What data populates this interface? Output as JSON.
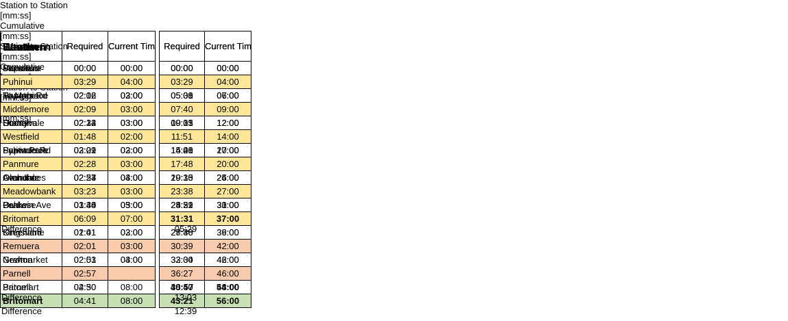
{
  "tables": [
    {
      "title": "Western",
      "groups": [
        {
          "name": "Station to Station",
          "unit": "[mm:ss]"
        },
        {
          "name": "Cumulative",
          "unit": "[mm:ss]"
        }
      ],
      "columns": [
        "Required",
        "Current Timetable",
        "Required",
        "Current Timetable"
      ],
      "rows": [
        [
          "Swanson",
          "00:00",
          "00:00",
          "00:00",
          "00:00"
        ],
        [
          "Ranui",
          "02:44",
          "03:00",
          "02:44",
          "03:00"
        ],
        [
          "Sturges Rd",
          "02:16",
          "03:00",
          "05:00",
          "06:00"
        ],
        [
          "Henderson",
          "02:01",
          "03:00",
          "07:01",
          "09:00"
        ],
        [
          "Sunnyvale",
          "02:14",
          "03:00",
          "09:15",
          "12:00"
        ],
        [
          "Glen Eden",
          "02:52",
          "03:00",
          "12:07",
          "15:00"
        ],
        [
          "Fruitvale Rd",
          "02:01",
          "02:00",
          "14:08",
          "17:00"
        ],
        [
          "New Lynn",
          "02:28",
          "04:00",
          "16:36",
          "21:00"
        ],
        [
          "Avondale",
          "02:54",
          "04:00",
          "19:30",
          "25:00"
        ],
        [
          "Mt Albert",
          "02:41",
          "03:00",
          "22:11",
          "28:00"
        ],
        [
          "Baldwin Ave",
          "01:48",
          "03:00",
          "23:59",
          "31:00"
        ],
        [
          "Morningside",
          "02:00",
          "03:00",
          "25:59",
          "34:00"
        ],
        [
          "Kingsland",
          "01:41",
          "02:00",
          "27:40",
          "36:00"
        ],
        [
          "Mt Eden",
          "02:21",
          "03:00",
          "30:01",
          "39:00"
        ],
        [
          "Grafton",
          "02:03",
          "03:00",
          "32:04",
          "42:00"
        ],
        [
          "Newmarket",
          "03:46",
          "06:00",
          "35:50",
          "48:00"
        ],
        [
          "Parnell",
          "02:50",
          null,
          "38:40",
          "48:00"
        ],
        [
          "Britomart",
          "04:41",
          "08:00",
          "43:21",
          "56:00"
        ]
      ],
      "difference": {
        "label": "Difference",
        "value": "12:39"
      }
    },
    {
      "title": "Southern",
      "groups": [
        {
          "name": "Station to Station",
          "unit": "[mm:ss]"
        },
        {
          "name": "Cumulative",
          "unit": "[mm:ss]"
        }
      ],
      "columns": [
        "Required",
        "Current Timetable",
        "Required",
        "Current Timetable"
      ],
      "rows": [
        [
          "Papakura",
          "00:00",
          "00:00",
          "00:00",
          "00:00"
        ],
        [
          "Takanini",
          "03:06",
          "04:00",
          "03:06",
          "04:00"
        ],
        [
          "Te Mahia",
          "02:02",
          "03:00",
          "05:08",
          "07:00"
        ],
        [
          "Manurewa",
          "01:51",
          "02:00",
          "06:59",
          "09:00"
        ],
        [
          "Homai",
          "02:32",
          "03:00",
          "09:31",
          "12:00"
        ],
        [
          "Puhinui",
          "03:08",
          "06:00",
          "12:39",
          "18:00"
        ],
        [
          "Papatoetoe",
          "02:02",
          "02:00",
          "14:41",
          "20:00"
        ],
        [
          "Middlemore",
          "02:09",
          "03:00",
          "16:50",
          "23:00"
        ],
        [
          "Otahuhu",
          "02:23",
          "03:00",
          "19:13",
          "26:00"
        ],
        [
          "Westfield",
          "01:48",
          "02:00",
          "21:01",
          "28:00"
        ],
        [
          "Penrose",
          "03:30",
          "05:00",
          "24:31",
          "33:00"
        ],
        [
          "Ellerslie",
          "02:06",
          "03:00",
          "26:37",
          "36:00"
        ],
        [
          "Greenlane",
          "02:01",
          "03:00",
          "28:38",
          "39:00"
        ],
        [
          "Remuera",
          "02:01",
          "03:00",
          "30:39",
          "42:00"
        ],
        [
          "Newmarket",
          "02:51",
          "04:00",
          "33:30",
          "46:00"
        ],
        [
          "Parnell",
          "02:57",
          null,
          "36:27",
          "46:00"
        ],
        [
          "Britomart",
          "04:30",
          "08:00",
          "40:57",
          "54:00"
        ]
      ],
      "difference": {
        "label": "Difference",
        "value": "13:03"
      }
    },
    {
      "title": "Eastern",
      "groups": [
        {
          "name": "Station to Station",
          "unit": "[mm:ss]"
        },
        {
          "name": "Cumulative",
          "unit": "[mm:ss]"
        }
      ],
      "columns": [
        "Required",
        "Current Timetable",
        "Required",
        "Current Timetable"
      ],
      "rows": [
        [
          "Manukau",
          null,
          null,
          "00:00",
          "00:00"
        ],
        [
          "Puhinui",
          "03:29",
          "04:00",
          "03:29",
          "04:00"
        ],
        [
          "Papatoetoe",
          "02:02",
          "02:00",
          "05:31",
          "06:00"
        ],
        [
          "Middlemore",
          "02:09",
          "03:00",
          "07:40",
          "09:00"
        ],
        [
          "Otahuhu",
          "02:23",
          "03:00",
          "10:03",
          "12:00"
        ],
        [
          "Westfield",
          "01:48",
          "02:00",
          "11:51",
          "14:00"
        ],
        [
          "Sylvia Park",
          "03:29",
          "03:00",
          "15:20",
          "17:00"
        ],
        [
          "Panmure",
          "02:28",
          "03:00",
          "17:48",
          "20:00"
        ],
        [
          "Glen Innes",
          "02:27",
          "04:00",
          "20:15",
          "24:00"
        ],
        [
          "Meadowbank",
          "03:23",
          "03:00",
          "23:38",
          "27:00"
        ],
        [
          "Orakei",
          "01:44",
          "03:00",
          "25:22",
          "30:00"
        ],
        [
          "Britomart",
          "06:09",
          "07:00",
          "31:31",
          "37:00"
        ]
      ],
      "difference": {
        "label": "Difference",
        "value": "05:29"
      }
    }
  ]
}
